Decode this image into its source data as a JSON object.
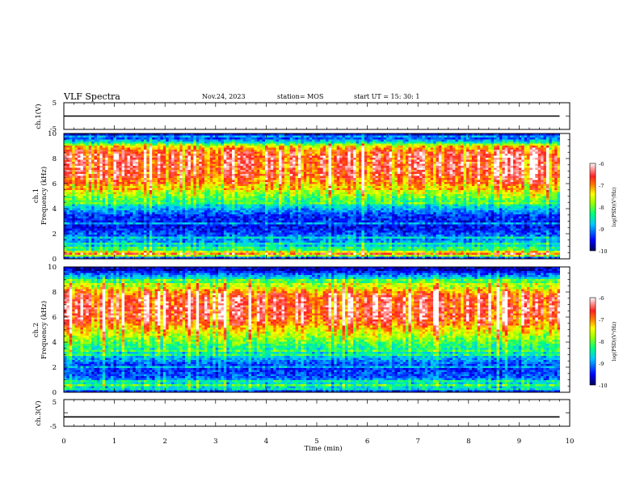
{
  "header": {
    "title": "VLF Spectra",
    "date": "Nov.24, 2023",
    "station": "station= MOS",
    "start": "start  UT =   15: 30: 1"
  },
  "panels": {
    "ch1v_label": "ch.1(V)",
    "ch1_spec_label_a": "ch.1",
    "ch1_spec_label_b": "Frequency (kHz)",
    "ch2_spec_label_a": "ch.2",
    "ch2_spec_label_b": "Frequency (kHz)",
    "ch3v_label": "ch.3(V)",
    "xlabel": "Time  (min)"
  },
  "colorbar": {
    "label": "log(PSD)(V²/Hz)",
    "ticks": [
      "-6",
      "-7",
      "-8",
      "-9",
      "-10"
    ]
  },
  "colors": {
    "background": "#ffffff",
    "axis": "#000000",
    "colormap": [
      "#00005a",
      "#0000ff",
      "#00c8ff",
      "#00ff80",
      "#a0ff00",
      "#ffff00",
      "#ff8000",
      "#ff2020",
      "#ffb0b0",
      "#ffffff"
    ]
  },
  "chart_data": [
    {
      "type": "line",
      "title": "VLF Spectra",
      "ylabel": "ch.1(V)",
      "xlim": [
        0,
        10
      ],
      "ylim": [
        -5,
        5
      ],
      "yticks": [
        "5",
        "-5"
      ],
      "series": [
        {
          "x": [
            0,
            9.8
          ],
          "values": [
            0,
            0
          ]
        }
      ]
    },
    {
      "type": "heatmap",
      "ylabel": "ch.1 Frequency (kHz)",
      "xlim": [
        0,
        10
      ],
      "ylim": [
        0,
        10
      ],
      "yticks": [
        "0",
        "2",
        "4",
        "6",
        "8",
        "10"
      ],
      "time_extent_min": 9.8,
      "zlim": [
        -10,
        -6
      ],
      "band_levels": [
        {
          "freq_khz": 9.75,
          "level": 0.12
        },
        {
          "freq_khz": 9.3,
          "level": 0.35
        },
        {
          "freq_khz": 9.0,
          "level": 0.65
        },
        {
          "freq_khz": 8.5,
          "level": 0.82
        },
        {
          "freq_khz": 7.5,
          "level": 0.85
        },
        {
          "freq_khz": 6.5,
          "level": 0.8
        },
        {
          "freq_khz": 5.5,
          "level": 0.62
        },
        {
          "freq_khz": 4.5,
          "level": 0.42
        },
        {
          "freq_khz": 3.5,
          "level": 0.16
        },
        {
          "freq_khz": 2.5,
          "level": 0.12
        },
        {
          "freq_khz": 1.5,
          "level": 0.25
        },
        {
          "freq_khz": 0.8,
          "level": 0.35
        },
        {
          "freq_khz": 0.4,
          "level": 0.78
        },
        {
          "freq_khz": 0.1,
          "level": 0.2
        }
      ]
    },
    {
      "type": "heatmap",
      "ylabel": "ch.2 Frequency (kHz)",
      "xlim": [
        0,
        10
      ],
      "ylim": [
        0,
        10
      ],
      "yticks": [
        "0",
        "2",
        "4",
        "6",
        "8",
        "10"
      ],
      "time_extent_min": 9.8,
      "zlim": [
        -10,
        -6
      ],
      "band_levels": [
        {
          "freq_khz": 9.75,
          "level": 0.08
        },
        {
          "freq_khz": 9.3,
          "level": 0.25
        },
        {
          "freq_khz": 8.7,
          "level": 0.5
        },
        {
          "freq_khz": 7.8,
          "level": 0.8
        },
        {
          "freq_khz": 6.8,
          "level": 0.86
        },
        {
          "freq_khz": 5.8,
          "level": 0.82
        },
        {
          "freq_khz": 4.8,
          "level": 0.62
        },
        {
          "freq_khz": 3.8,
          "level": 0.45
        },
        {
          "freq_khz": 2.8,
          "level": 0.3
        },
        {
          "freq_khz": 2.0,
          "level": 0.15
        },
        {
          "freq_khz": 1.2,
          "level": 0.2
        },
        {
          "freq_khz": 0.5,
          "level": 0.4
        },
        {
          "freq_khz": 0.1,
          "level": 0.15
        }
      ]
    },
    {
      "type": "line",
      "ylabel": "ch.3(V)",
      "xlabel": "Time  (min)",
      "xlim": [
        0,
        10
      ],
      "ylim": [
        -5,
        5
      ],
      "xticks": [
        "0",
        "1",
        "2",
        "3",
        "4",
        "5",
        "6",
        "7",
        "8",
        "9",
        "10"
      ],
      "yticks": [
        "5",
        "-5"
      ],
      "series": [
        {
          "x": [
            0,
            9.8
          ],
          "values": [
            -1.5,
            -1.5
          ]
        }
      ]
    }
  ]
}
